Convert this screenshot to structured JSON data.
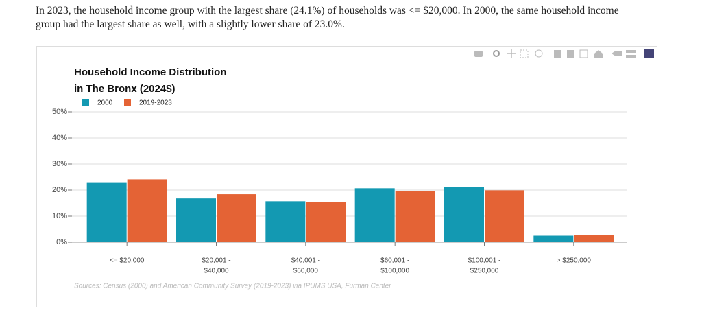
{
  "intro": "In 2023, the household income group with the largest share (24.1%) of households was <= $20,000. In 2000, the same household income group had the largest share as well, with a slightly lower share of 23.0%.",
  "chart_data": {
    "type": "bar",
    "title": [
      "Household Income Distribution",
      "in The Bronx (2024$)"
    ],
    "categories": [
      [
        "<= $20,000"
      ],
      [
        "$20,001 -",
        "$40,000"
      ],
      [
        "$40,001 -",
        "$60,000"
      ],
      [
        "$60,001 -",
        "$100,000"
      ],
      [
        "$100,001 -",
        "$250,000"
      ],
      [
        "> $250,000"
      ]
    ],
    "series": [
      {
        "name": "2000",
        "color": "#1399b2",
        "values": [
          23.0,
          16.8,
          15.7,
          20.7,
          21.3,
          2.5
        ]
      },
      {
        "name": "2019-2023",
        "color": "#e46335",
        "values": [
          24.1,
          18.4,
          15.3,
          19.6,
          19.9,
          2.7
        ]
      }
    ],
    "ylim": [
      0,
      50
    ],
    "yticks": [
      {
        "value": 0,
        "label": "0%"
      },
      {
        "value": 10,
        "label": "10%"
      },
      {
        "value": 20,
        "label": "20%"
      },
      {
        "value": 30,
        "label": "30%"
      },
      {
        "value": 40,
        "label": "40%"
      },
      {
        "value": 50,
        "label": "50%"
      }
    ],
    "grid": true,
    "source": "Sources: Census (2000) and American Community Survey (2019-2023) via IPUMS USA, Furman Center"
  }
}
